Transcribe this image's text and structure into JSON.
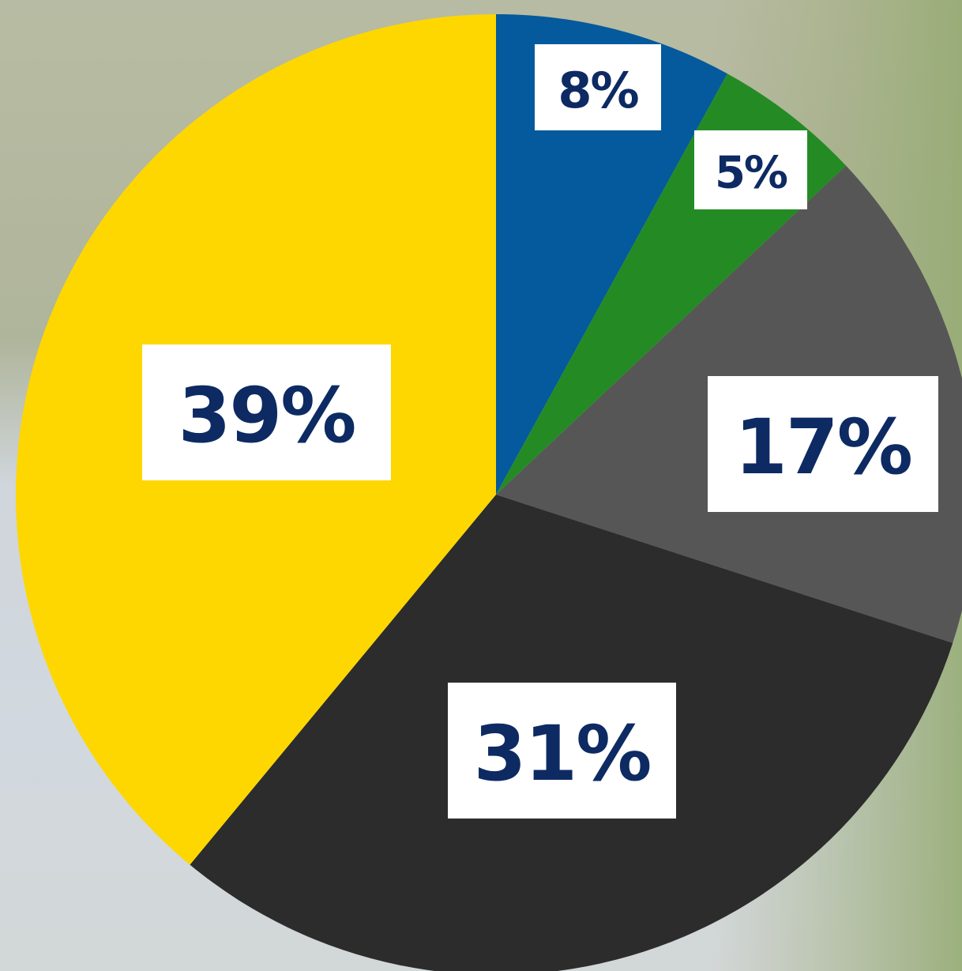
{
  "chart_data": {
    "type": "pie",
    "unit": "%",
    "slices": [
      {
        "label": "8%",
        "value": 8,
        "color": "#045a9c"
      },
      {
        "label": "5%",
        "value": 5,
        "color": "#248b24"
      },
      {
        "label": "17%",
        "value": 17,
        "color": "#565656"
      },
      {
        "label": "31%",
        "value": 31,
        "color": "#2c2c2c"
      },
      {
        "label": "39%",
        "value": 39,
        "color": "#fed700"
      }
    ],
    "start_angle": "12 o'clock",
    "direction": "clockwise",
    "label_box_color": "#ffffff",
    "label_text_color": "#0d2a63",
    "title": "",
    "legend": "none"
  }
}
